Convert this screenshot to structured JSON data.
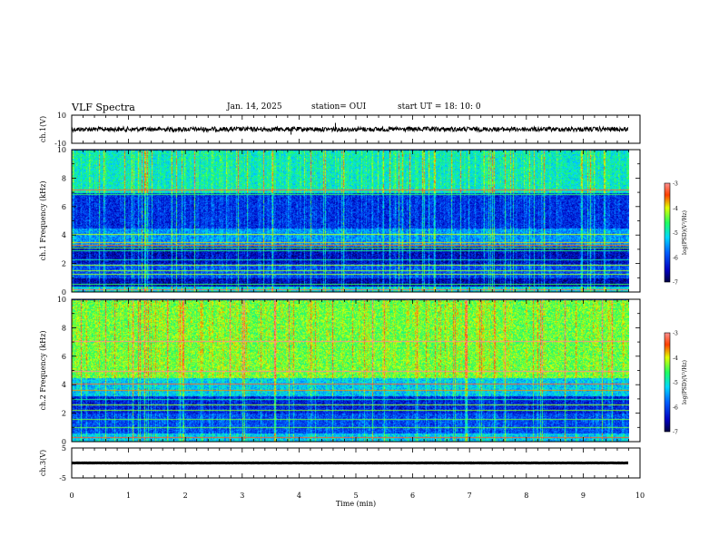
{
  "header": {
    "title": "VLF Spectra",
    "date": "Jan. 14, 2025",
    "station": "station= OUI",
    "start": "start  UT =   18: 10: 0"
  },
  "chart_data": [
    {
      "type": "line",
      "panel": "ch1-waveform",
      "ylabel": "ch.1(V)",
      "ylim": [
        -10,
        10
      ],
      "yticks": [
        "10",
        "-10"
      ],
      "xlim": [
        0,
        10
      ],
      "grid": false,
      "series": [
        {
          "x": [
            0,
            9.8
          ],
          "y": [
            0,
            0
          ],
          "color": "#000000"
        }
      ],
      "notes_visible": "near-zero noisy trace"
    },
    {
      "type": "heatmap",
      "panel": "ch1-spectrogram",
      "ylabel": "ch.1 Frequency  (kHz)",
      "ylim": [
        0,
        10
      ],
      "yticks": [
        "0",
        "2",
        "4",
        "6",
        "8",
        "10"
      ],
      "xlim": [
        0,
        9.8
      ],
      "colorbar": {
        "label": "log(PSD)(V²/Hz)",
        "range": [
          -7,
          -3
        ],
        "ticks": [
          "-3",
          "-4",
          "-5",
          "-6",
          "-7"
        ]
      },
      "bands": [
        {
          "f0": 0,
          "f1": 0.4,
          "level": -5.2
        },
        {
          "f0": 0.4,
          "f1": 1.0,
          "level": -6.6
        },
        {
          "f0": 1.0,
          "f1": 2.0,
          "level": -6.0
        },
        {
          "f0": 2.0,
          "f1": 3.2,
          "level": -6.5
        },
        {
          "f0": 3.2,
          "f1": 4.5,
          "level": -5.6
        },
        {
          "f0": 4.5,
          "f1": 7.0,
          "level": -6.2
        },
        {
          "f0": 7.0,
          "f1": 10,
          "level": -5.0
        }
      ],
      "lines_khz": [
        0.2,
        0.6,
        1.3,
        1.5,
        1.9,
        2.3,
        2.9,
        3.1,
        3.3,
        3.5,
        4.1,
        6.9,
        7.2
      ]
    },
    {
      "type": "heatmap",
      "panel": "ch2-spectrogram",
      "ylabel": "ch.2 Frequency  (kHz)",
      "ylim": [
        0,
        10
      ],
      "yticks": [
        "0",
        "2",
        "4",
        "6",
        "8",
        "10"
      ],
      "xlim": [
        0,
        9.8
      ],
      "colorbar": {
        "label": "log(PSD)(V²/Hz)",
        "range": [
          -7,
          -3
        ],
        "ticks": [
          "-3",
          "-4",
          "-5",
          "-6",
          "-7"
        ]
      },
      "bands": [
        {
          "f0": 0,
          "f1": 0.6,
          "level": -5.3
        },
        {
          "f0": 0.6,
          "f1": 2.0,
          "level": -6.0
        },
        {
          "f0": 2.0,
          "f1": 3.2,
          "level": -6.3
        },
        {
          "f0": 3.2,
          "f1": 4.5,
          "level": -5.3
        },
        {
          "f0": 4.5,
          "f1": 10,
          "level": -4.4
        }
      ],
      "lines_khz": [
        0.3,
        1.0,
        1.6,
        2.2,
        2.6,
        3.0,
        3.6,
        4.1,
        5.0,
        7.1
      ]
    },
    {
      "type": "line",
      "panel": "ch3-waveform",
      "ylabel": "ch.3(V)",
      "ylim": [
        -5,
        5
      ],
      "yticks": [
        "5",
        "-5"
      ],
      "xlim": [
        0,
        10
      ],
      "xlabel": "Time  (min)",
      "xticks": [
        "0",
        "1",
        "2",
        "3",
        "4",
        "5",
        "6",
        "7",
        "8",
        "9",
        "10"
      ],
      "series": [
        {
          "x": [
            0,
            9.8
          ],
          "y": [
            0,
            0
          ],
          "color": "#000000"
        }
      ]
    }
  ]
}
